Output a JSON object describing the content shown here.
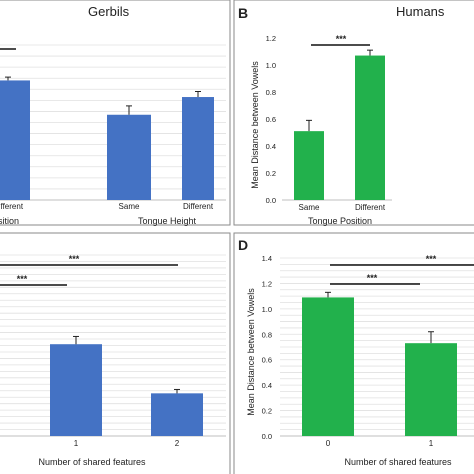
{
  "colors": {
    "gerbil_bar": "#4472c4",
    "human_bar": "#22b14c",
    "frame": "#8a8a8a",
    "grid": "#e0e0e0",
    "text": "#222222"
  },
  "chart_data": [
    {
      "panel": "A (partial)",
      "type": "bar",
      "title": "Gerbils",
      "categories": [
        "Different",
        "Same",
        "Different"
      ],
      "values": [
        1.08,
        0.77,
        0.93
      ],
      "errors": [
        0.03,
        0.08,
        0.05
      ],
      "ylim": [
        0,
        1.4
      ],
      "group_labels": [
        "sition",
        "Tongue  Height"
      ],
      "significance": [
        {
          "label": ""
        }
      ]
    },
    {
      "panel": "B",
      "type": "bar",
      "title": "Humans",
      "panel_letter": "B",
      "categories": [
        "Same",
        "Different"
      ],
      "values": [
        0.51,
        1.07
      ],
      "errors": [
        0.08,
        0.04
      ],
      "ylim": [
        0,
        1.2
      ],
      "yticks": [
        "0.0",
        "0.2",
        "0.4",
        "0.6",
        "0.8",
        "1.0",
        "1.2"
      ],
      "ylabel": "Mean Distance between Vowels",
      "xlabel": "Tongue Position",
      "significance": [
        {
          "label": "***"
        }
      ]
    },
    {
      "panel": "C (partial)",
      "type": "bar",
      "categories": [
        "1",
        "2"
      ],
      "values": [
        0.71,
        0.33
      ],
      "errors": [
        0.06,
        0.03
      ],
      "ylim": [
        0,
        1.4
      ],
      "xlabel": "Number of shared features",
      "significance": [
        {
          "label": "***"
        },
        {
          "label": "***"
        }
      ]
    },
    {
      "panel": "D",
      "type": "bar",
      "panel_letter": "D",
      "categories": [
        "0",
        "1"
      ],
      "values": [
        1.09,
        0.73
      ],
      "errors": [
        0.04,
        0.09
      ],
      "ylim": [
        0,
        1.4
      ],
      "yticks": [
        "0.0",
        "0.2",
        "0.4",
        "0.6",
        "0.8",
        "1.0",
        "1.2",
        "1.4"
      ],
      "ylabel": "Mean Distance between Vowels",
      "xlabel": "Number of shared features",
      "significance": [
        {
          "label": "***"
        },
        {
          "label": "***"
        }
      ]
    }
  ]
}
